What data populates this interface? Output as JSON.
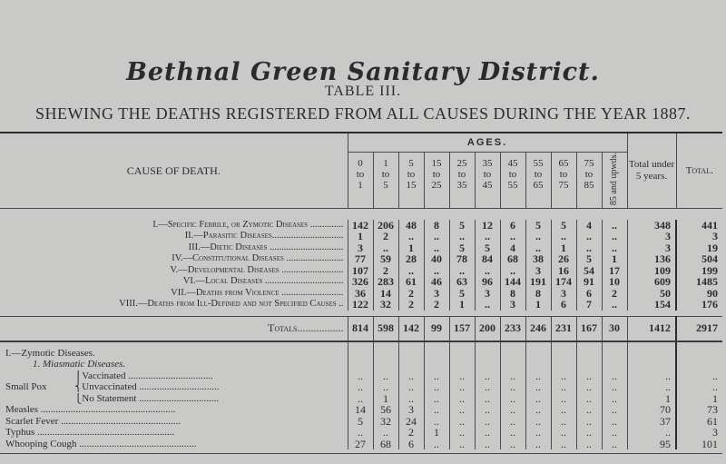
{
  "header": {
    "title": "Bethnal Green Sanitary District.",
    "table_label": "TABLE III.",
    "subtitle": "SHEWING THE DEATHS REGISTERED FROM ALL CAUSES DURING THE YEAR 1887."
  },
  "columns": {
    "cause": "CAUSE OF DEATH.",
    "ages": "AGES.",
    "age_groups": [
      "0\nto\n1",
      "1\nto\n5",
      "5\nto\n15",
      "15\nto\n25",
      "25\nto\n35",
      "35\nto\n45",
      "45\nto\n55",
      "55\nto\n65",
      "65\nto\n75",
      "75\nto\n85"
    ],
    "oldest": "85 and upwds.",
    "under5": "Total under 5 years.",
    "total": "Total."
  },
  "classes": [
    {
      "label": "I.—Specific Febrile, or Zymotic Diseases ..............",
      "values": [
        "142",
        "206",
        "48",
        "8",
        "5",
        "12",
        "6",
        "5",
        "5",
        "4",
        "..",
        "348",
        "441"
      ]
    },
    {
      "label": "II.—Parasitic Diseases..............................",
      "values": [
        "1",
        "2",
        "..",
        "..",
        "..",
        "..",
        "..",
        "..",
        "..",
        "..",
        "..",
        "3",
        "3"
      ]
    },
    {
      "label": "III.—Dietic Diseases ...............................",
      "values": [
        "3",
        "..",
        "1",
        "..",
        "5",
        "5",
        "4",
        "..",
        "1",
        "..",
        "..",
        "3",
        "19"
      ]
    },
    {
      "label": "IV.—Constitutional Diseases ........................",
      "values": [
        "77",
        "59",
        "28",
        "40",
        "78",
        "84",
        "68",
        "38",
        "26",
        "5",
        "1",
        "136",
        "504"
      ]
    },
    {
      "label": "V.—Developmental Diseases ..........................",
      "values": [
        "107",
        "2",
        "..",
        "..",
        "..",
        "..",
        "..",
        "3",
        "16",
        "54",
        "17",
        "109",
        "199"
      ]
    },
    {
      "label": "VI.—Local Diseases .................................",
      "values": [
        "326",
        "283",
        "61",
        "46",
        "63",
        "96",
        "144",
        "191",
        "174",
        "91",
        "10",
        "609",
        "1485"
      ]
    },
    {
      "label": "VII.—Deaths from Violence ..........................",
      "values": [
        "36",
        "14",
        "2",
        "3",
        "5",
        "3",
        "8",
        "8",
        "3",
        "6",
        "2",
        "50",
        "90"
      ]
    },
    {
      "label": "VIII.—Deaths from Ill-Defined and not Specified Causes ..",
      "values": [
        "122",
        "32",
        "2",
        "2",
        "1",
        "..",
        "3",
        "1",
        "6",
        "7",
        "..",
        "154",
        "176"
      ]
    }
  ],
  "totals": {
    "label": "Totals.................",
    "values": [
      "814",
      "598",
      "142",
      "99",
      "157",
      "200",
      "233",
      "246",
      "231",
      "167",
      "30",
      "1412",
      "2917"
    ]
  },
  "zymotic": {
    "heading": "I.—Zymotic Diseases.",
    "subheading": "1. Miasmatic Diseases.",
    "small_pox": "Small Pox",
    "rows": [
      {
        "label": "⎧Vaccinated ..................................",
        "values": [
          "..",
          "..",
          "..",
          "..",
          "..",
          "..",
          "..",
          "..",
          "..",
          "..",
          "..",
          "..",
          ".."
        ]
      },
      {
        "label": "⎨Unvaccinated ................................",
        "values": [
          "..",
          "..",
          "..",
          "..",
          "..",
          "..",
          "..",
          "..",
          "..",
          "..",
          "..",
          "..",
          ".."
        ]
      },
      {
        "label": "⎩No Statement ................................",
        "values": [
          "..",
          "1",
          "..",
          "..",
          "..",
          "..",
          "..",
          "..",
          "..",
          "..",
          "..",
          "1",
          "1"
        ]
      },
      {
        "label": "Measles ......................................................",
        "values": [
          "14",
          "56",
          "3",
          "..",
          "..",
          "..",
          "..",
          "..",
          "..",
          "..",
          "..",
          "70",
          "73"
        ]
      },
      {
        "label": "Scarlet Fever ................................................",
        "values": [
          "5",
          "32",
          "24",
          "..",
          "..",
          "..",
          "..",
          "..",
          "..",
          "..",
          "..",
          "37",
          "61"
        ]
      },
      {
        "label": "Typhus .......................................................",
        "values": [
          "..",
          "..",
          "2",
          "1",
          "..",
          "..",
          "..",
          "..",
          "..",
          "..",
          "..",
          "..",
          "3"
        ]
      },
      {
        "label": "Whooping Cough ...............................................",
        "values": [
          "27",
          "68",
          "6",
          "..",
          "..",
          "..",
          "..",
          "..",
          "..",
          "..",
          "..",
          "95",
          "101"
        ]
      }
    ]
  }
}
